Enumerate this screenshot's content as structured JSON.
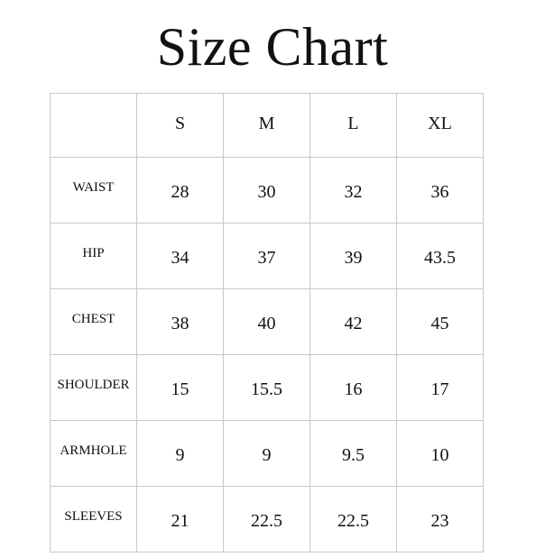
{
  "title": "Size Chart",
  "columns": [
    "",
    "S",
    "M",
    "L",
    "XL"
  ],
  "rows": [
    {
      "label": "WAIST",
      "values": [
        "28",
        "30",
        "32",
        "36"
      ]
    },
    {
      "label": "HIP",
      "values": [
        "34",
        "37",
        "39",
        "43.5"
      ]
    },
    {
      "label": "CHEST",
      "values": [
        "38",
        "40",
        "42",
        "45"
      ]
    },
    {
      "label": "SHOULDER",
      "values": [
        "15",
        "15.5",
        "16",
        "17"
      ]
    },
    {
      "label": "ARMHOLE",
      "values": [
        "9",
        "9",
        "9.5",
        "10"
      ]
    },
    {
      "label": "SLEEVES",
      "values": [
        "21",
        "22.5",
        "22.5",
        "23"
      ]
    }
  ]
}
